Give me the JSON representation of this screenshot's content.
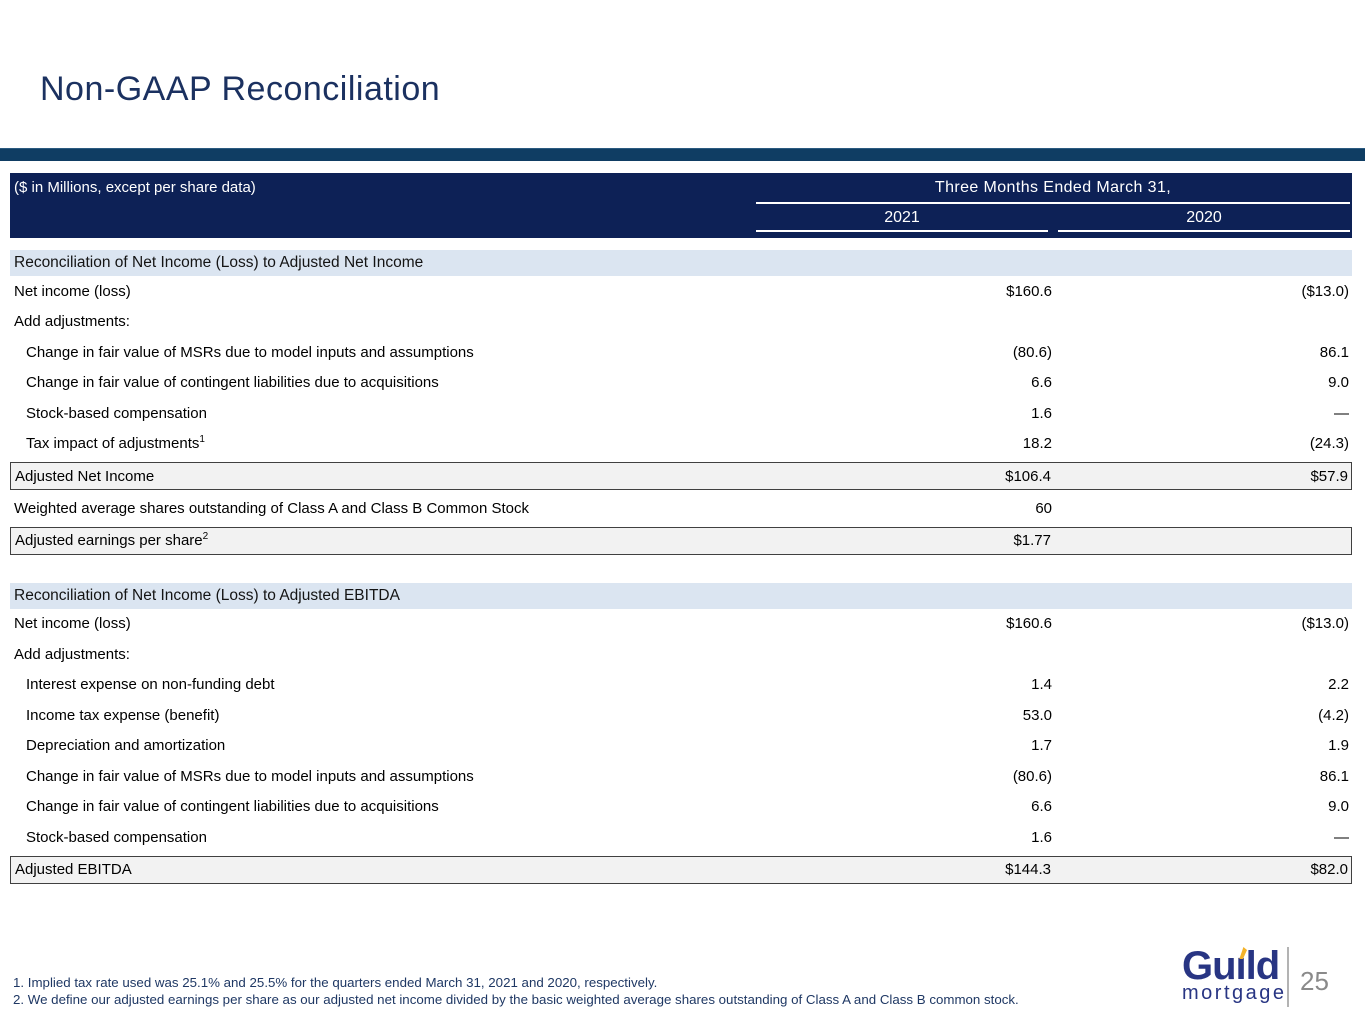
{
  "slide": {
    "title": "Non-GAAP Reconciliation",
    "page_number": "25"
  },
  "table": {
    "units_label": "($ in Millions, except per share data)",
    "period_header": "Three Months Ended March 31,",
    "years": [
      "2021",
      "2020"
    ],
    "sections": [
      {
        "header": "Reconciliation of Net Income (Loss) to Adjusted Net Income",
        "rows": [
          {
            "label": "Net income (loss)",
            "v2021": "$160.6",
            "v2020": "($13.0)"
          },
          {
            "label": "Add adjustments:",
            "v2021": "",
            "v2020": ""
          },
          {
            "label": "Change in fair value of MSRs due to model inputs and assumptions",
            "v2021": "(80.6)",
            "v2020": "86.1"
          },
          {
            "label": "Change in fair value of contingent liabilities due to acquisitions",
            "v2021": "6.6",
            "v2020": "9.0"
          },
          {
            "label": "Stock-based compensation",
            "v2021": "1.6",
            "v2020": "—"
          },
          {
            "label": "Tax impact of adjustments",
            "sup": "1",
            "v2021": "18.2",
            "v2020": "(24.3)"
          },
          {
            "label": "Adjusted Net Income",
            "v2021": "$106.4",
            "v2020": "$57.9"
          },
          {
            "label": "Weighted average shares outstanding of Class A and Class B Common Stock",
            "v2021": "60",
            "v2020": ""
          },
          {
            "label": "Adjusted earnings per share",
            "sup": "2",
            "v2021": "$1.77",
            "v2020": ""
          }
        ]
      },
      {
        "header": "Reconciliation of Net Income (Loss) to Adjusted EBITDA",
        "rows": [
          {
            "label": "Net income (loss)",
            "v2021": "$160.6",
            "v2020": "($13.0)"
          },
          {
            "label": "Add adjustments:",
            "v2021": "",
            "v2020": ""
          },
          {
            "label": "Interest expense on non-funding debt",
            "v2021": "1.4",
            "v2020": "2.2"
          },
          {
            "label": "Income tax expense (benefit)",
            "v2021": "53.0",
            "v2020": "(4.2)"
          },
          {
            "label": "Depreciation and amortization",
            "v2021": "1.7",
            "v2020": "1.9"
          },
          {
            "label": "Change in fair value of MSRs due to model inputs and assumptions",
            "v2021": "(80.6)",
            "v2020": "86.1"
          },
          {
            "label": "Change in fair value of contingent liabilities due to acquisitions",
            "v2021": "6.6",
            "v2020": "9.0"
          },
          {
            "label": "Stock-based compensation",
            "v2021": "1.6",
            "v2020": "—"
          },
          {
            "label": "Adjusted EBITDA",
            "v2021": "$144.3",
            "v2020": "$82.0"
          }
        ]
      }
    ]
  },
  "footnotes": [
    "1. Implied tax rate used was 25.1% and 25.5% for the quarters ended March 31, 2021 and 2020, respectively.",
    "2. We define our adjusted earnings per share as our adjusted net income divided by the basic weighted average shares outstanding of Class A and Class B common stock."
  ],
  "logo": {
    "brand": "Guıld",
    "sub": "mortgage"
  },
  "colors": {
    "title_navy": "#1b3160",
    "bar_blue": "#0f3d63",
    "header_navy": "#0d2156",
    "section_blue": "#dbe5f1",
    "box_gray": "#f2f2f2",
    "box_border": "#404040",
    "footnote_navy": "#1f3864",
    "logo_navy": "#283583",
    "logo_gold": "#f3b229",
    "page_num_gray": "#8a8a8a"
  }
}
